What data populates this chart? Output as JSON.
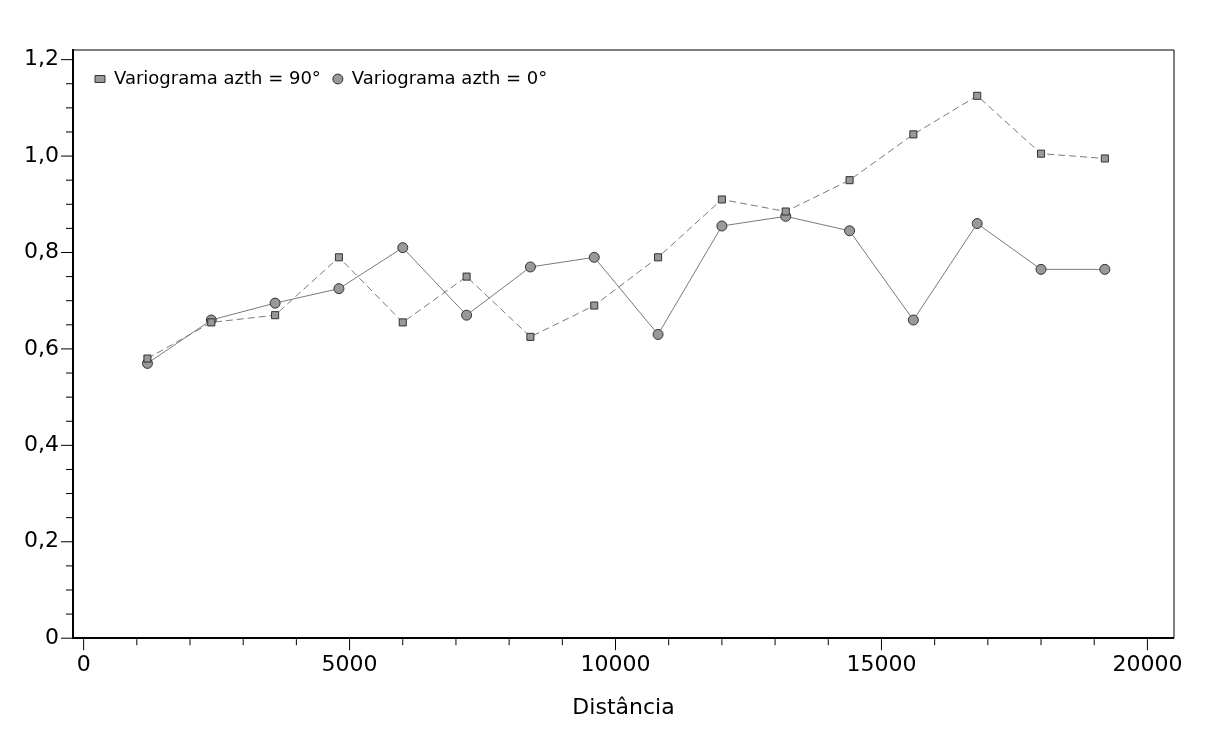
{
  "chart_data": {
    "type": "line",
    "xlabel": "Distância",
    "x": [
      1200,
      2400,
      3600,
      4800,
      6000,
      7200,
      8400,
      9600,
      10800,
      12000,
      13200,
      14400,
      15600,
      16800,
      18000,
      19200
    ],
    "series": [
      {
        "name": "Variograma azth = 0°",
        "color": "#999999",
        "marker": "circle",
        "line_style": "solid",
        "values": [
          0.57,
          0.66,
          0.695,
          0.725,
          0.81,
          0.67,
          0.77,
          0.79,
          0.63,
          0.855,
          0.875,
          0.845,
          0.66,
          0.86,
          0.765,
          0.765
        ]
      },
      {
        "name": "Variograma azth = 90°",
        "color": "#999999",
        "marker": "square",
        "line_style": "dashed",
        "values": [
          0.58,
          0.655,
          0.67,
          0.79,
          0.655,
          0.75,
          0.625,
          0.69,
          0.79,
          0.91,
          0.885,
          0.95,
          1.045,
          1.125,
          1.005,
          0.995
        ]
      }
    ],
    "xlim": [
      -200,
      20500
    ],
    "ylim": [
      0,
      1.22
    ],
    "xticks": [
      0,
      {
        "value": 1000,
        "label": null
      },
      {
        "value": 2000,
        "label": null
      },
      {
        "value": 3000,
        "label": null
      },
      {
        "value": 4000,
        "label": null
      },
      5000,
      {
        "value": 6000,
        "label": null
      },
      {
        "value": 7000,
        "label": null
      },
      {
        "value": 8000,
        "label": null
      },
      {
        "value": 9000,
        "label": null
      },
      10000,
      {
        "value": 11000,
        "label": null
      },
      {
        "value": 12000,
        "label": null
      },
      {
        "value": 13000,
        "label": null
      },
      {
        "value": 14000,
        "label": null
      },
      15000,
      {
        "value": 16000,
        "label": null
      },
      {
        "value": 17000,
        "label": null
      },
      {
        "value": 18000,
        "label": null
      },
      {
        "value": 19000,
        "label": null
      },
      20000
    ],
    "yticks": [
      0,
      {
        "value": 0.05,
        "label": null
      },
      {
        "value": 0.1,
        "label": null
      },
      {
        "value": 0.15,
        "label": null
      },
      {
        "value": 0.2,
        "label": "0,2"
      },
      {
        "value": 0.25,
        "label": null
      },
      {
        "value": 0.3,
        "label": null
      },
      {
        "value": 0.35,
        "label": null
      },
      {
        "value": 0.4,
        "label": "0,4"
      },
      {
        "value": 0.45,
        "label": null
      },
      {
        "value": 0.5,
        "label": null
      },
      {
        "value": 0.55,
        "label": null
      },
      {
        "value": 0.6,
        "label": "0,6"
      },
      {
        "value": 0.65,
        "label": null
      },
      {
        "value": 0.7,
        "label": null
      },
      {
        "value": 0.75,
        "label": null
      },
      {
        "value": 0.8,
        "label": "0,8"
      },
      {
        "value": 0.85,
        "label": null
      },
      {
        "value": 0.9,
        "label": null
      },
      {
        "value": 0.95,
        "label": null
      },
      {
        "value": 1.0,
        "label": "1,0"
      },
      {
        "value": 1.05,
        "label": null
      },
      {
        "value": 1.1,
        "label": null
      },
      {
        "value": 1.15,
        "label": null
      },
      {
        "value": 1.2,
        "label": "1,2"
      }
    ],
    "legend": "top left",
    "grid": false
  }
}
